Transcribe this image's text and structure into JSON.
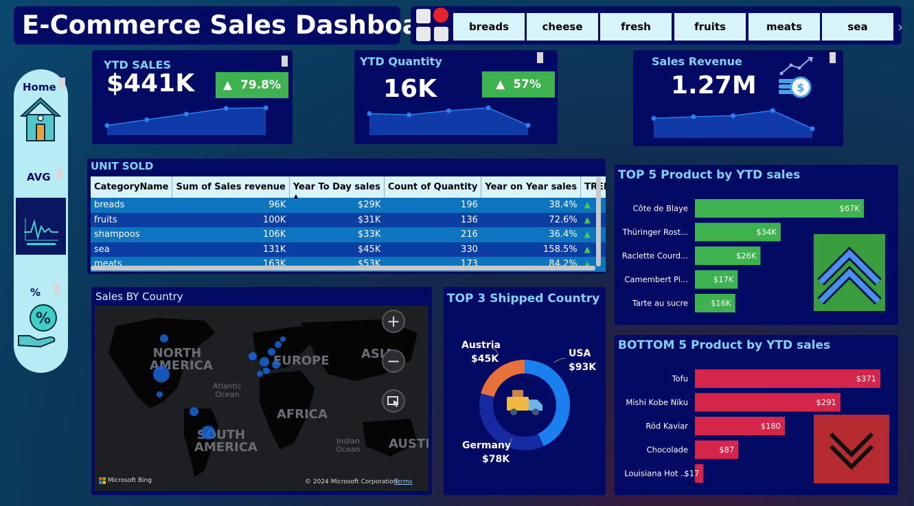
{
  "title": "E-Commerce Sales Dashboard",
  "slicer": {
    "items": [
      "breads",
      "cheese",
      "fresh",
      "fruits",
      "meats",
      "sea"
    ]
  },
  "nav": {
    "home_label": "Home",
    "avg_label": "AVG",
    "pct_label": "%"
  },
  "kpis": [
    {
      "title": "YTD SALES",
      "value": "$441K",
      "badge": "79.8%",
      "trend": [
        1,
        2,
        3,
        4,
        4.1
      ]
    },
    {
      "title": "YTD Quantity",
      "value": "16K",
      "badge": "57%",
      "trend": [
        3,
        2.8,
        3.5,
        4,
        1
      ]
    },
    {
      "title": "Sales Revenue",
      "value": "1.27M",
      "trend": [
        3,
        3.3,
        3.5,
        4.5,
        1
      ]
    }
  ],
  "table": {
    "title": "UNIT SOLD",
    "columns": [
      "CategoryName",
      "Sum of Sales revenue",
      "Year To Day sales",
      "Count of Quantity",
      "Year on Year sales",
      "TREN"
    ],
    "rows": [
      [
        "breads",
        "96K",
        "$29K",
        "196",
        "38.4%"
      ],
      [
        "fruits",
        "100K",
        "$31K",
        "136",
        "72.6%"
      ],
      [
        "shampoos",
        "106K",
        "$33K",
        "216",
        "36.4%"
      ],
      [
        "sea",
        "131K",
        "$45K",
        "330",
        "158.5%"
      ],
      [
        "meats",
        "163K",
        "$53K",
        "173",
        "84.2%"
      ]
    ],
    "trend_symbol": "▲",
    "sort_symbol": "▲"
  },
  "map": {
    "title": "Sales BY Country",
    "labels": [
      "NORTH AMERICA",
      "EUROPE",
      "ASIA",
      "AFRICA",
      "SOUTH AMERICA",
      "AUSTR"
    ],
    "ocean_atlantic": "Atlantic Ocean",
    "ocean_indian": "Indian Ocean",
    "brand": "Microsoft Bing",
    "copyright": "© 2024 Microsoft Corporation",
    "terms": "Terms",
    "zoom_in": "+",
    "zoom_out": "−"
  },
  "donut": {
    "title": "TOP 3 Shipped Country",
    "colors": {
      "usa": "#1a7fef",
      "germany": "#152aa0",
      "austria": "#e8703a"
    },
    "labels": {
      "usa": "USA",
      "usa_value": "$93K",
      "germany": "Germany",
      "germany_value": "$78K",
      "austria": "Austria",
      "austria_value": "$45K"
    }
  },
  "chart_data": [
    {
      "type": "pie",
      "title": "TOP 3 Shipped Country",
      "categories": [
        "USA",
        "Germany",
        "Austria"
      ],
      "values": [
        93,
        78,
        45
      ]
    },
    {
      "type": "bar",
      "title": "TOP 5 Product by YTD sales",
      "categories": [
        "Côte de Blaye",
        "Thüringer Rost...",
        "Raclette Courd...",
        "Camembert Pi...",
        "Tarte au sucre"
      ],
      "values": [
        67,
        34,
        26,
        17,
        16
      ],
      "labels": [
        "$67K",
        "$34K",
        "$26K",
        "$17K",
        "$16K"
      ],
      "color": "#3eb24f"
    },
    {
      "type": "bar",
      "title": "BOTTOM 5 Product by YTD sales",
      "categories": [
        "Tofu",
        "Mishi Kobe Niku",
        "Röd Kaviar",
        "Chocolade",
        "Louisiana Hot ..."
      ],
      "values": [
        371,
        291,
        180,
        87,
        17
      ],
      "labels": [
        "$371",
        "$291",
        "$180",
        "$87",
        "$17"
      ],
      "color": "#d6254a"
    }
  ]
}
